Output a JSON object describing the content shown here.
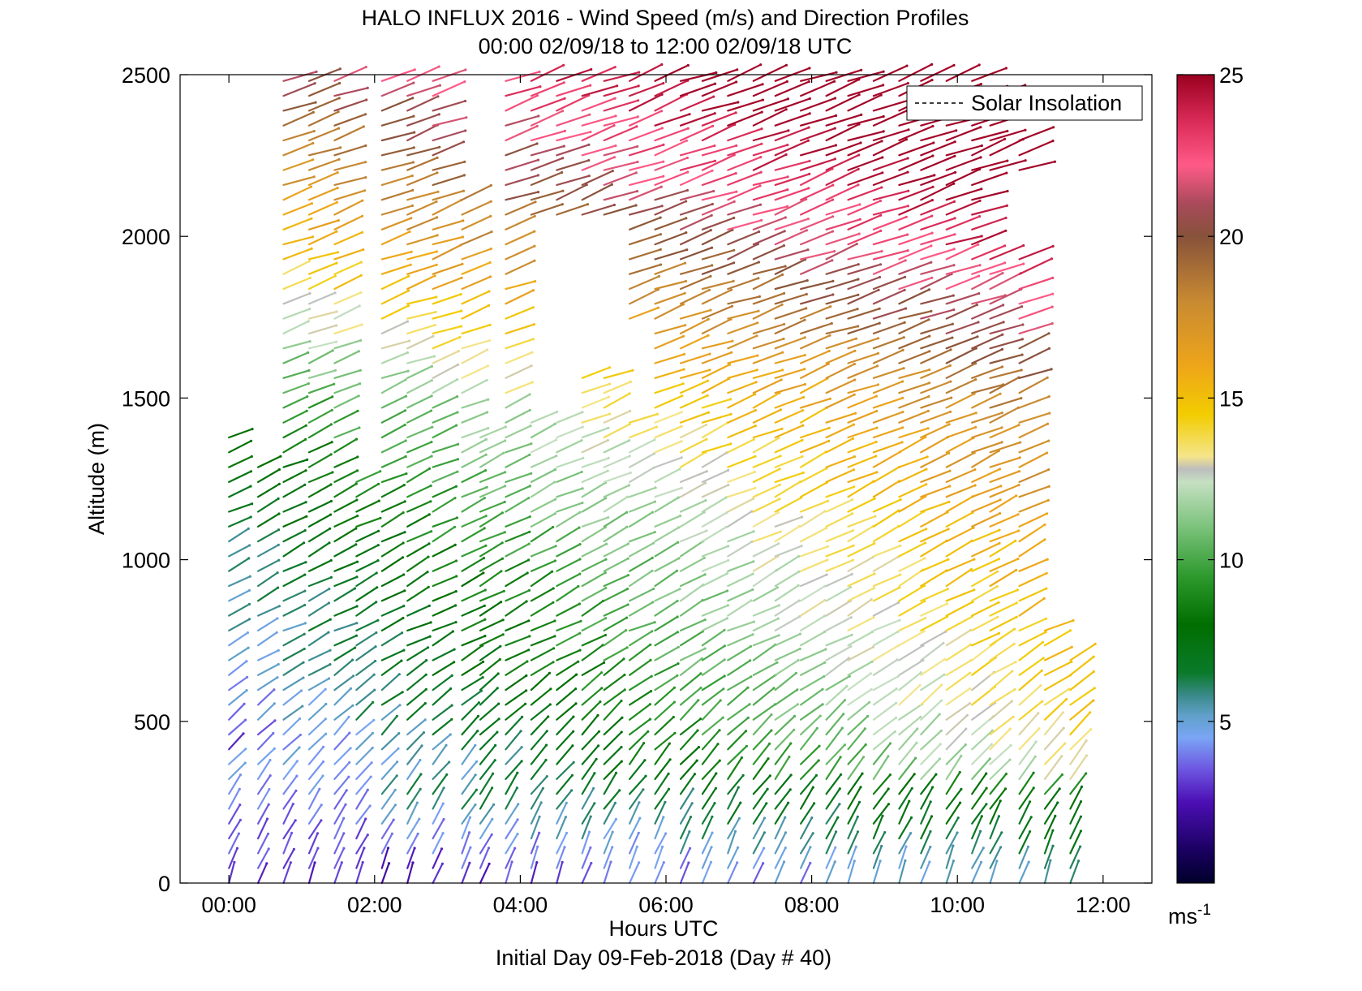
{
  "chart_data": {
    "type": "wind-barb-profile",
    "title": "HALO INFLUX 2016 - Wind Speed (m/s) and Direction Profiles",
    "subtitle": "00:00 02/09/18 to 12:00 02/09/18  UTC",
    "xlabel": "Hours UTC",
    "ylabel": "Altitude (m)",
    "caption": "Initial Day 09-Feb-2018 (Day # 40)",
    "xlim": [
      -0.67,
      12.67
    ],
    "ylim": [
      0,
      2500
    ],
    "x_ticks": [
      {
        "value": 0,
        "label": "00:00"
      },
      {
        "value": 2,
        "label": "02:00"
      },
      {
        "value": 4,
        "label": "04:00"
      },
      {
        "value": 6,
        "label": "06:00"
      },
      {
        "value": 8,
        "label": "08:00"
      },
      {
        "value": 10,
        "label": "10:00"
      },
      {
        "value": 12,
        "label": "12:00"
      }
    ],
    "y_ticks": [
      {
        "value": 0,
        "label": "0"
      },
      {
        "value": 500,
        "label": "500"
      },
      {
        "value": 1000,
        "label": "1000"
      },
      {
        "value": 1500,
        "label": "1500"
      },
      {
        "value": 2000,
        "label": "2000"
      },
      {
        "value": 2500,
        "label": "2500"
      }
    ],
    "legend": {
      "entry": "Solar Insolation",
      "placement": "top-right",
      "line_style": "dashed",
      "color": "#000000"
    },
    "colorbar": {
      "range": [
        0,
        25
      ],
      "ticks": [
        {
          "value": 5,
          "label": "5"
        },
        {
          "value": 10,
          "label": "10"
        },
        {
          "value": 15,
          "label": "15"
        },
        {
          "value": 20,
          "label": "20"
        },
        {
          "value": 25,
          "label": "25"
        }
      ],
      "unit_label": "ms",
      "unit_exponent": "-1",
      "stops": [
        {
          "v": 0,
          "color": "#00002a"
        },
        {
          "v": 1,
          "color": "#1a0060"
        },
        {
          "v": 2.5,
          "color": "#4b0fb4"
        },
        {
          "v": 3.5,
          "color": "#6d55e0"
        },
        {
          "v": 4.5,
          "color": "#7aa5f5"
        },
        {
          "v": 5.2,
          "color": "#5fa0c8"
        },
        {
          "v": 5.8,
          "color": "#3a8a8a"
        },
        {
          "v": 6.5,
          "color": "#0a7a2a"
        },
        {
          "v": 8,
          "color": "#006e00"
        },
        {
          "v": 9.5,
          "color": "#2e9a2e"
        },
        {
          "v": 11,
          "color": "#7bc27b"
        },
        {
          "v": 12.4,
          "color": "#c5e0c2"
        },
        {
          "v": 12.8,
          "color": "#bdbdbd"
        },
        {
          "v": 13.2,
          "color": "#f5e58a"
        },
        {
          "v": 14.5,
          "color": "#f2cc00"
        },
        {
          "v": 16,
          "color": "#eea51a"
        },
        {
          "v": 18,
          "color": "#c88a32"
        },
        {
          "v": 20,
          "color": "#87523a"
        },
        {
          "v": 21,
          "color": "#a84a5a"
        },
        {
          "v": 22.2,
          "color": "#ff5a88"
        },
        {
          "v": 23.5,
          "color": "#dc2d5a"
        },
        {
          "v": 25,
          "color": "#9a0020"
        }
      ]
    },
    "times_hours": [
      0.0,
      0.4,
      0.75,
      1.1,
      1.45,
      1.75,
      2.1,
      2.45,
      2.8,
      3.2,
      3.45,
      3.8,
      4.15,
      4.5,
      4.85,
      5.15,
      5.5,
      5.85,
      6.2,
      6.5,
      6.85,
      7.2,
      7.5,
      7.85,
      8.2,
      8.5,
      8.85,
      9.2,
      9.5,
      9.85,
      10.2,
      10.45,
      10.85,
      11.2,
      11.55
    ],
    "profile_tops_m": [
      1380,
      1320,
      2500,
      2500,
      2500,
      1250,
      2500,
      2500,
      2500,
      2150,
      1420,
      2500,
      2500,
      2500,
      2500,
      2500,
      2500,
      2500,
      2500,
      2500,
      2500,
      2500,
      2500,
      2500,
      2500,
      2500,
      2500,
      2500,
      2500,
      2500,
      2500,
      2470,
      2300,
      820,
      710
    ],
    "speed_profile_m_s": [
      {
        "altitude_m": 0,
        "speed": 3.5
      },
      {
        "altitude_m": 250,
        "speed": 6.5
      },
      {
        "altitude_m": 500,
        "speed": 8.5
      },
      {
        "altitude_m": 1000,
        "speed": 10.5
      },
      {
        "altitude_m": 1500,
        "speed": 13.5
      },
      {
        "altitude_m": 2000,
        "speed": 19.5
      },
      {
        "altitude_m": 2500,
        "speed": 24.5
      }
    ],
    "speed_trend_m_s_per_hour": 0.9
  }
}
